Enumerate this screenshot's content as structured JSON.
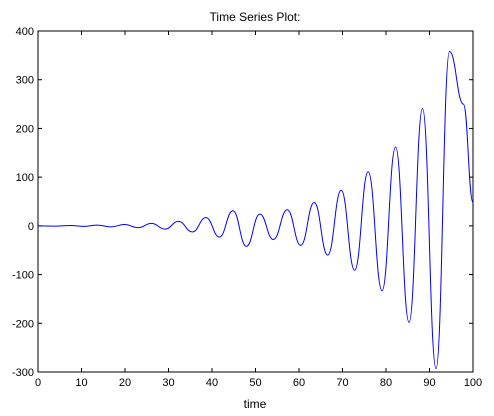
{
  "chart_data": {
    "type": "line",
    "title": "Time Series Plot:",
    "xlabel": "time",
    "ylabel": "",
    "xlim": [
      0,
      100
    ],
    "ylim": [
      -300,
      400
    ],
    "xticks": [
      0,
      10,
      20,
      30,
      40,
      50,
      60,
      70,
      80,
      90,
      100
    ],
    "yticks": [
      -300,
      -200,
      -100,
      0,
      100,
      200,
      300,
      400
    ],
    "grid": false,
    "legend": "none",
    "line_color": "#0000ff",
    "series": [
      {
        "x": [
          0,
          4.3,
          7.4,
          10.5,
          13.6,
          16.8,
          19.9,
          23.0,
          26.1,
          29.2,
          32.3,
          35.5,
          38.6,
          41.7,
          44.8,
          47.9,
          51.0,
          54.1,
          57.3,
          60.4,
          63.5,
          66.6,
          69.7,
          72.8,
          75.9,
          79.1,
          82.2,
          85.3,
          88.4,
          91.5,
          94.6,
          97.8,
          100
        ],
        "y": [
          0,
          -0.6,
          0.8,
          -1.0,
          1.5,
          -2.0,
          2.7,
          -3.7,
          5.0,
          -6.8,
          9.2,
          -12.5,
          17,
          -23,
          31,
          -42,
          24,
          -28,
          33,
          -40,
          48,
          -60,
          73,
          -91,
          111,
          -133,
          162,
          -198,
          241,
          -293,
          358,
          250,
          48
        ]
      }
    ]
  }
}
